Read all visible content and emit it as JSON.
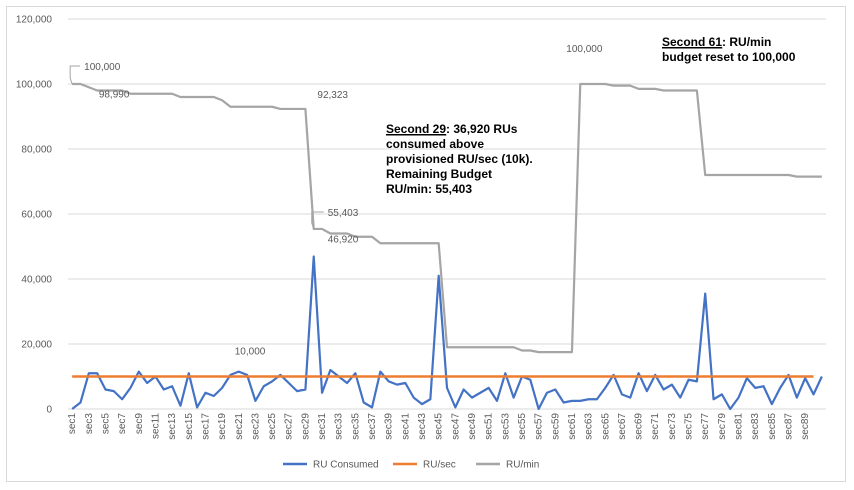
{
  "chart_data": {
    "type": "line",
    "title": "",
    "xlabel": "",
    "ylabel": "",
    "ylim": [
      0,
      120000
    ],
    "y_ticks": [
      "0",
      "20,000",
      "40,000",
      "60,000",
      "80,000",
      "100,000",
      "120,000"
    ],
    "grid": "horizontal",
    "legend_position": "bottom",
    "x_tick_labels": [
      "sec1",
      "sec3",
      "sec5",
      "sec7",
      "sec9",
      "sec11",
      "sec13",
      "sec15",
      "sec17",
      "sec19",
      "sec21",
      "sec23",
      "sec25",
      "sec27",
      "sec29",
      "sec31",
      "sec33",
      "sec35",
      "sec37",
      "sec39",
      "sec41",
      "sec43",
      "sec45",
      "sec47",
      "sec49",
      "sec51",
      "sec53",
      "sec55",
      "sec57",
      "sec59",
      "sec61",
      "sec63",
      "sec65",
      "sec67",
      "sec69",
      "sec71",
      "sec73",
      "sec75",
      "sec77",
      "sec79",
      "sec81",
      "sec83",
      "sec85",
      "sec87",
      "sec89"
    ],
    "series": [
      {
        "name": "RU Consumed",
        "color": "#4472c4",
        "values": [
          0,
          2000,
          11000,
          11000,
          6000,
          5500,
          3000,
          6500,
          11500,
          8000,
          10000,
          6000,
          7000,
          1000,
          11000,
          500,
          5000,
          4000,
          6500,
          10500,
          11500,
          10500,
          2500,
          7000,
          8500,
          10500,
          8000,
          5500,
          6000,
          46920,
          5000,
          12000,
          10000,
          8000,
          11000,
          2000,
          500,
          11500,
          8500,
          7500,
          8000,
          3500,
          1500,
          3000,
          41000,
          6500,
          500,
          6000,
          3500,
          5000,
          6500,
          2500,
          11000,
          3500,
          10000,
          9000,
          0,
          5000,
          6000,
          2000,
          2500,
          2500,
          3000,
          3000,
          6500,
          10500,
          4500,
          3500,
          11000,
          5500,
          10500,
          6000,
          7500,
          3500,
          9000,
          8500,
          35500,
          3000,
          4500,
          0,
          3500,
          9500,
          6500,
          7000,
          1500,
          6500,
          10500,
          3500,
          9500,
          4500,
          10000
        ]
      },
      {
        "name": "RU/sec",
        "color": "#ed7d31",
        "values": [
          10000,
          10000,
          10000,
          10000,
          10000,
          10000,
          10000,
          10000,
          10000,
          10000,
          10000,
          10000,
          10000,
          10000,
          10000,
          10000,
          10000,
          10000,
          10000,
          10000,
          10000,
          10000,
          10000,
          10000,
          10000,
          10000,
          10000,
          10000,
          10000,
          10000,
          10000,
          10000,
          10000,
          10000,
          10000,
          10000,
          10000,
          10000,
          10000,
          10000,
          10000,
          10000,
          10000,
          10000,
          10000,
          10000,
          10000,
          10000,
          10000,
          10000,
          10000,
          10000,
          10000,
          10000,
          10000,
          10000,
          10000,
          10000,
          10000,
          10000,
          10000,
          10000,
          10000,
          10000,
          10000,
          10000,
          10000,
          10000,
          10000,
          10000,
          10000,
          10000,
          10000,
          10000,
          10000,
          10000,
          10000,
          10000,
          10000,
          10000,
          10000,
          10000,
          10000,
          10000,
          10000,
          10000,
          10000,
          10000,
          10000,
          10000
        ]
      },
      {
        "name": "RU/min",
        "color": "#a5a5a5",
        "values": [
          100000,
          100000,
          98990,
          98000,
          98000,
          98000,
          98000,
          97000,
          97000,
          97000,
          97000,
          97000,
          97000,
          96000,
          96000,
          96000,
          96000,
          96000,
          95000,
          93000,
          93000,
          93000,
          93000,
          93000,
          93000,
          92323,
          92323,
          92323,
          92323,
          55403,
          55403,
          54000,
          54000,
          54000,
          53000,
          53000,
          53000,
          51000,
          51000,
          51000,
          51000,
          51000,
          51000,
          51000,
          51000,
          19000,
          19000,
          19000,
          19000,
          19000,
          19000,
          19000,
          19000,
          19000,
          18000,
          18000,
          17500,
          17500,
          17500,
          17500,
          17500,
          100000,
          100000,
          100000,
          100000,
          99500,
          99500,
          99500,
          98500,
          98500,
          98500,
          98000,
          98000,
          98000,
          98000,
          98000,
          72000,
          72000,
          72000,
          72000,
          72000,
          72000,
          72000,
          72000,
          72000,
          72000,
          72000,
          71500,
          71500,
          71500,
          71500
        ]
      }
    ],
    "data_labels": [
      {
        "series": "RU/min",
        "index": 0,
        "text": "100,000"
      },
      {
        "series": "RU/min",
        "index": 2,
        "text": "98,990"
      },
      {
        "series": "RU/min",
        "index": 28,
        "text": "92,323"
      },
      {
        "series": "RU/min",
        "index": 29,
        "text": "55,403"
      },
      {
        "series": "RU Consumed",
        "index": 29,
        "text": "46,920"
      },
      {
        "series": "RU/min",
        "index": 61,
        "text": "100,000"
      },
      {
        "series": "RU/sec",
        "index": 20,
        "text": "10,000"
      }
    ],
    "annotations": [
      {
        "bold_prefix": "Second 29",
        "lines": [
          ": 36,920 RUs",
          "consumed above",
          "provisioned RU/sec (10k).",
          "Remaining Budget",
          "RU/min: 55,403"
        ]
      },
      {
        "bold_prefix": "Second 61",
        "lines": [
          ": RU/min",
          "budget reset to 100,000"
        ]
      }
    ]
  }
}
